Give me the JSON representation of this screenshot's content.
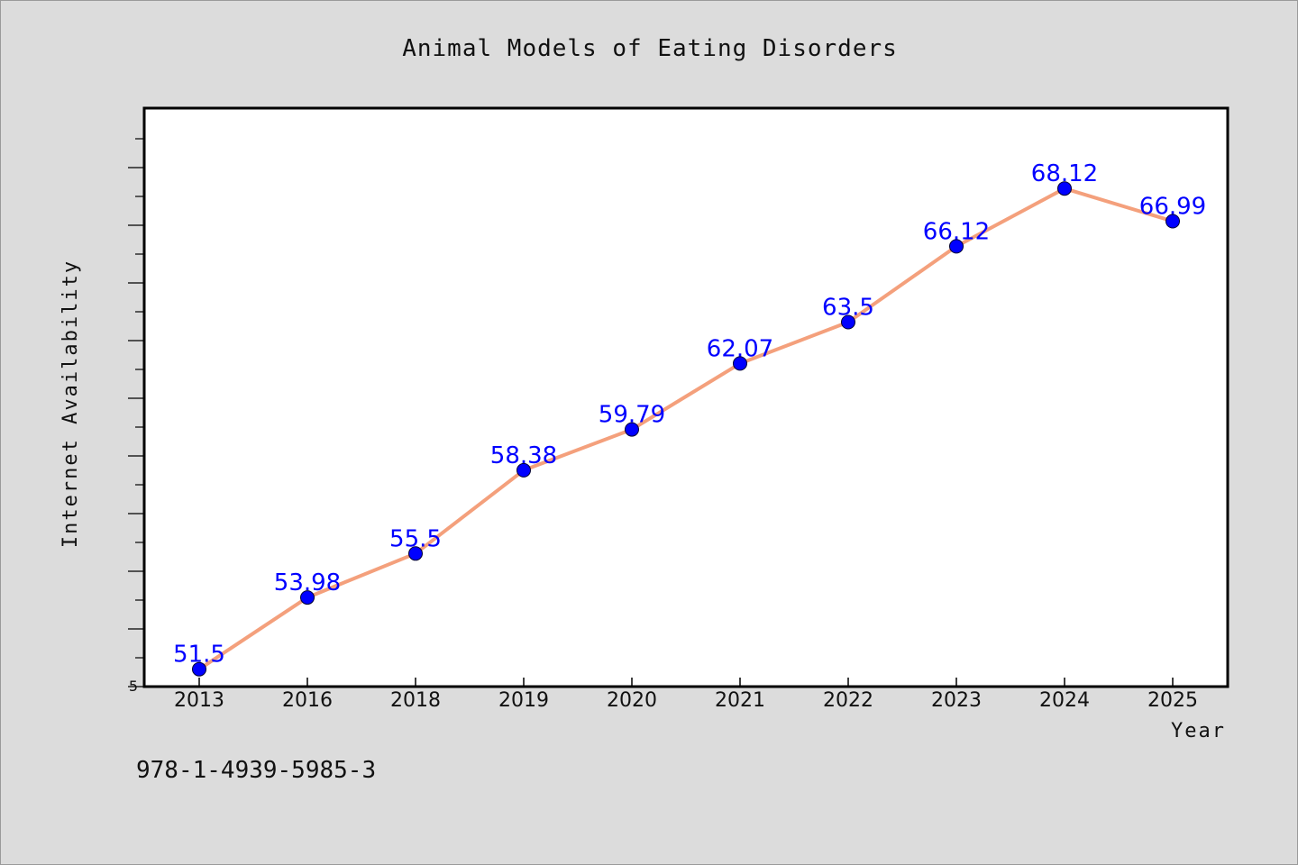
{
  "chart_data": {
    "type": "line",
    "title": "Animal Models of Eating Disorders",
    "xlabel": "Year",
    "ylabel": "Internet Availability",
    "categories": [
      "2013",
      "2016",
      "2018",
      "2019",
      "2020",
      "2021",
      "2022",
      "2023",
      "2024",
      "2025"
    ],
    "series": [
      {
        "values": [
          51.5,
          53.98,
          55.5,
          58.38,
          59.79,
          62.07,
          63.5,
          66.12,
          68.12,
          66.99
        ],
        "labels": [
          "51.5",
          "53.98",
          "55.5",
          "58.38",
          "59.79",
          "62.07",
          "63.5",
          "66.12",
          "68.12",
          "66.99"
        ]
      }
    ],
    "ylim": [
      50.9,
      70.9
    ],
    "y_tick_label": "5",
    "grid": false,
    "line_color": "#f4a07c",
    "marker_color": "#0000ff",
    "label_color": "#0000ff"
  },
  "footer": {
    "text": "978-1-4939-5985-3"
  }
}
